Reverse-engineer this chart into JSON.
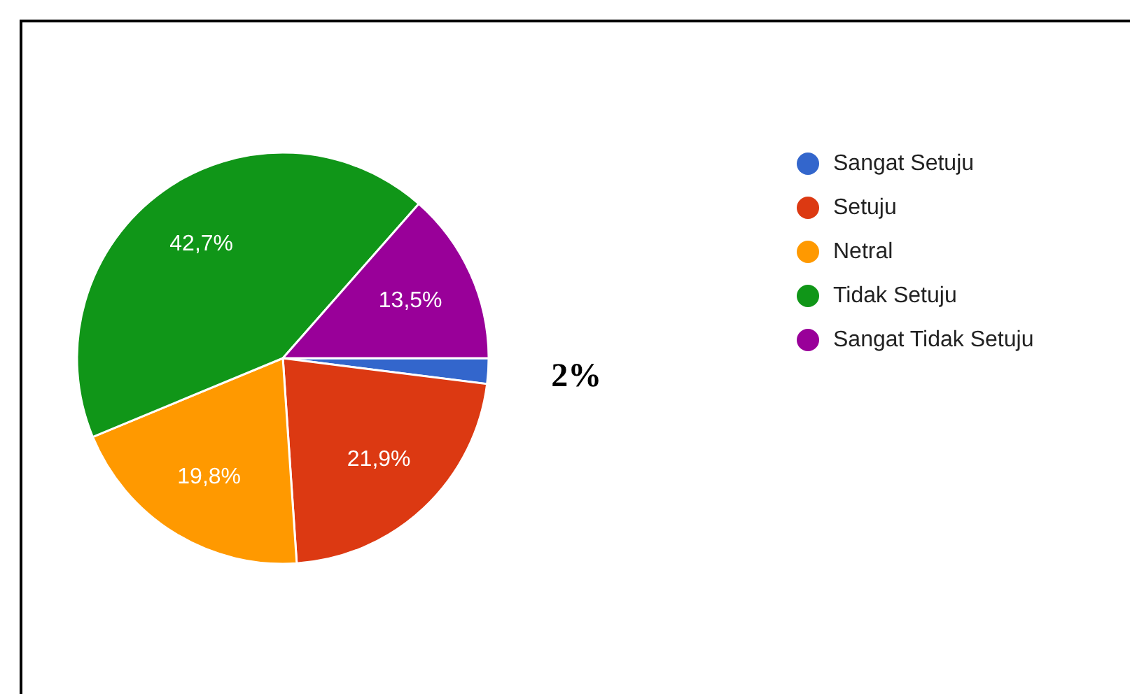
{
  "chart_data": {
    "type": "pie",
    "categories": [
      "Sangat Setuju",
      "Setuju",
      "Netral",
      "Tidak Setuju",
      "Sangat Tidak Setuju"
    ],
    "values": [
      2,
      21.9,
      19.8,
      42.7,
      13.5
    ],
    "colors": [
      "#3366cc",
      "#dc3912",
      "#ff9900",
      "#109618",
      "#990099"
    ],
    "value_labels": [
      "2%",
      "21,9%",
      "19,8%",
      "42,7%",
      "13,5%"
    ],
    "legend": "right"
  }
}
